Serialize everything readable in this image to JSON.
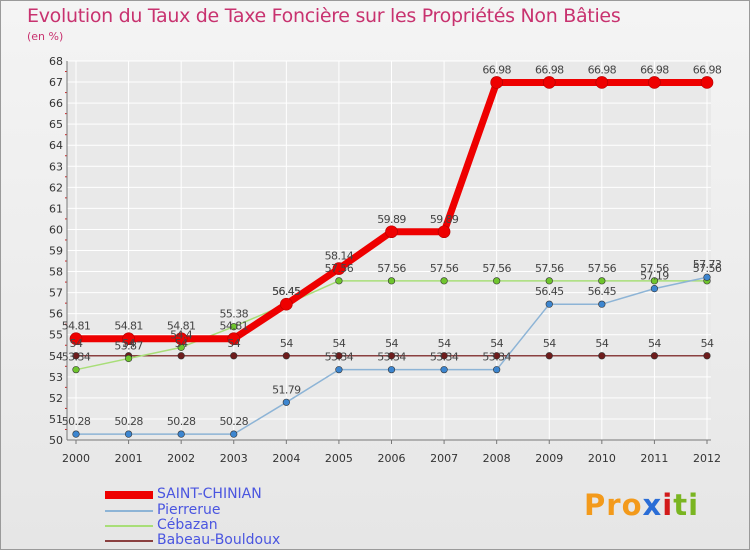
{
  "header": {
    "title": "Evolution du Taux de Taxe Foncière sur les Propriétés Non Bâties",
    "unit": "(en %)"
  },
  "brand": {
    "letters": [
      "P",
      "r",
      "o",
      "x",
      "i",
      "t",
      "i"
    ]
  },
  "colors": {
    "title": "#c8326f",
    "legend_text": "#4a55e0",
    "grid": "#ffffff",
    "axis": "#777777",
    "brand": [
      "#f39a1b",
      "#f39a1b",
      "#f39a1b",
      "#2a6dd6",
      "#d21a1a",
      "#7ab521",
      "#7ab521"
    ]
  },
  "chart_data": {
    "type": "line",
    "title": "Evolution du Taux de Taxe Foncière sur les Propriétés Non Bâties",
    "ylabel": "(en %)",
    "xlabel": "",
    "x": [
      "2000",
      "2001",
      "2002",
      "2003",
      "2004",
      "2005",
      "2006",
      "2007",
      "2008",
      "2009",
      "2010",
      "2011",
      "2012"
    ],
    "ylim": [
      50,
      68
    ],
    "yticks": [
      50,
      51,
      52,
      53,
      54,
      55,
      56,
      57,
      58,
      59,
      60,
      61,
      62,
      63,
      64,
      65,
      66,
      67,
      68
    ],
    "grid": true,
    "legend_position": "bottom-left",
    "series": [
      {
        "name": "SAINT-CHINIAN",
        "color": "#ee0000",
        "dot": "#ee0000",
        "width": 7,
        "values": [
          54.81,
          54.81,
          54.81,
          54.81,
          56.45,
          58.14,
          59.89,
          59.89,
          66.98,
          66.98,
          66.98,
          66.98,
          66.98
        ],
        "labels": [
          "54.81",
          "54.81",
          "54.81",
          "54.81",
          "56.45",
          "58.14",
          "59.89",
          "59.89",
          "66.98",
          "66.98",
          "66.98",
          "66.98",
          "66.98"
        ]
      },
      {
        "name": "Pierrerue",
        "color": "#8db4d6",
        "dot": "#3d86d0",
        "width": 1.5,
        "values": [
          50.28,
          50.28,
          50.28,
          50.28,
          51.79,
          53.34,
          53.34,
          53.34,
          53.34,
          56.45,
          56.45,
          57.19,
          57.73
        ],
        "labels": [
          "50.28",
          "50.28",
          "50.28",
          "50.28",
          "51.79",
          "53.34",
          "53.34",
          "53.34",
          "53.34",
          "56.45",
          "56.45",
          "57.19",
          "57.73"
        ]
      },
      {
        "name": "Cébazan",
        "color": "#a8de78",
        "dot": "#6fc52e",
        "width": 1.5,
        "values": [
          53.34,
          53.87,
          54.4,
          55.38,
          56.45,
          57.56,
          57.56,
          57.56,
          57.56,
          57.56,
          57.56,
          57.56,
          57.56
        ],
        "labels": [
          "53.34",
          "53.87",
          "54.4",
          "55.38",
          "56.45",
          "57.56",
          "57.56",
          "57.56",
          "57.56",
          "57.56",
          "57.56",
          "57.56",
          "57.56"
        ]
      },
      {
        "name": "Babeau-Bouldoux",
        "color": "#8a4040",
        "dot": "#6e1c1c",
        "width": 1.5,
        "values": [
          54,
          54,
          54,
          54,
          54,
          54,
          54,
          54,
          54,
          54,
          54,
          54,
          54
        ],
        "labels": [
          "54",
          "54",
          "54",
          "54",
          "54",
          "54",
          "54",
          "54",
          "54",
          "54",
          "54",
          "54",
          "54"
        ]
      }
    ]
  }
}
